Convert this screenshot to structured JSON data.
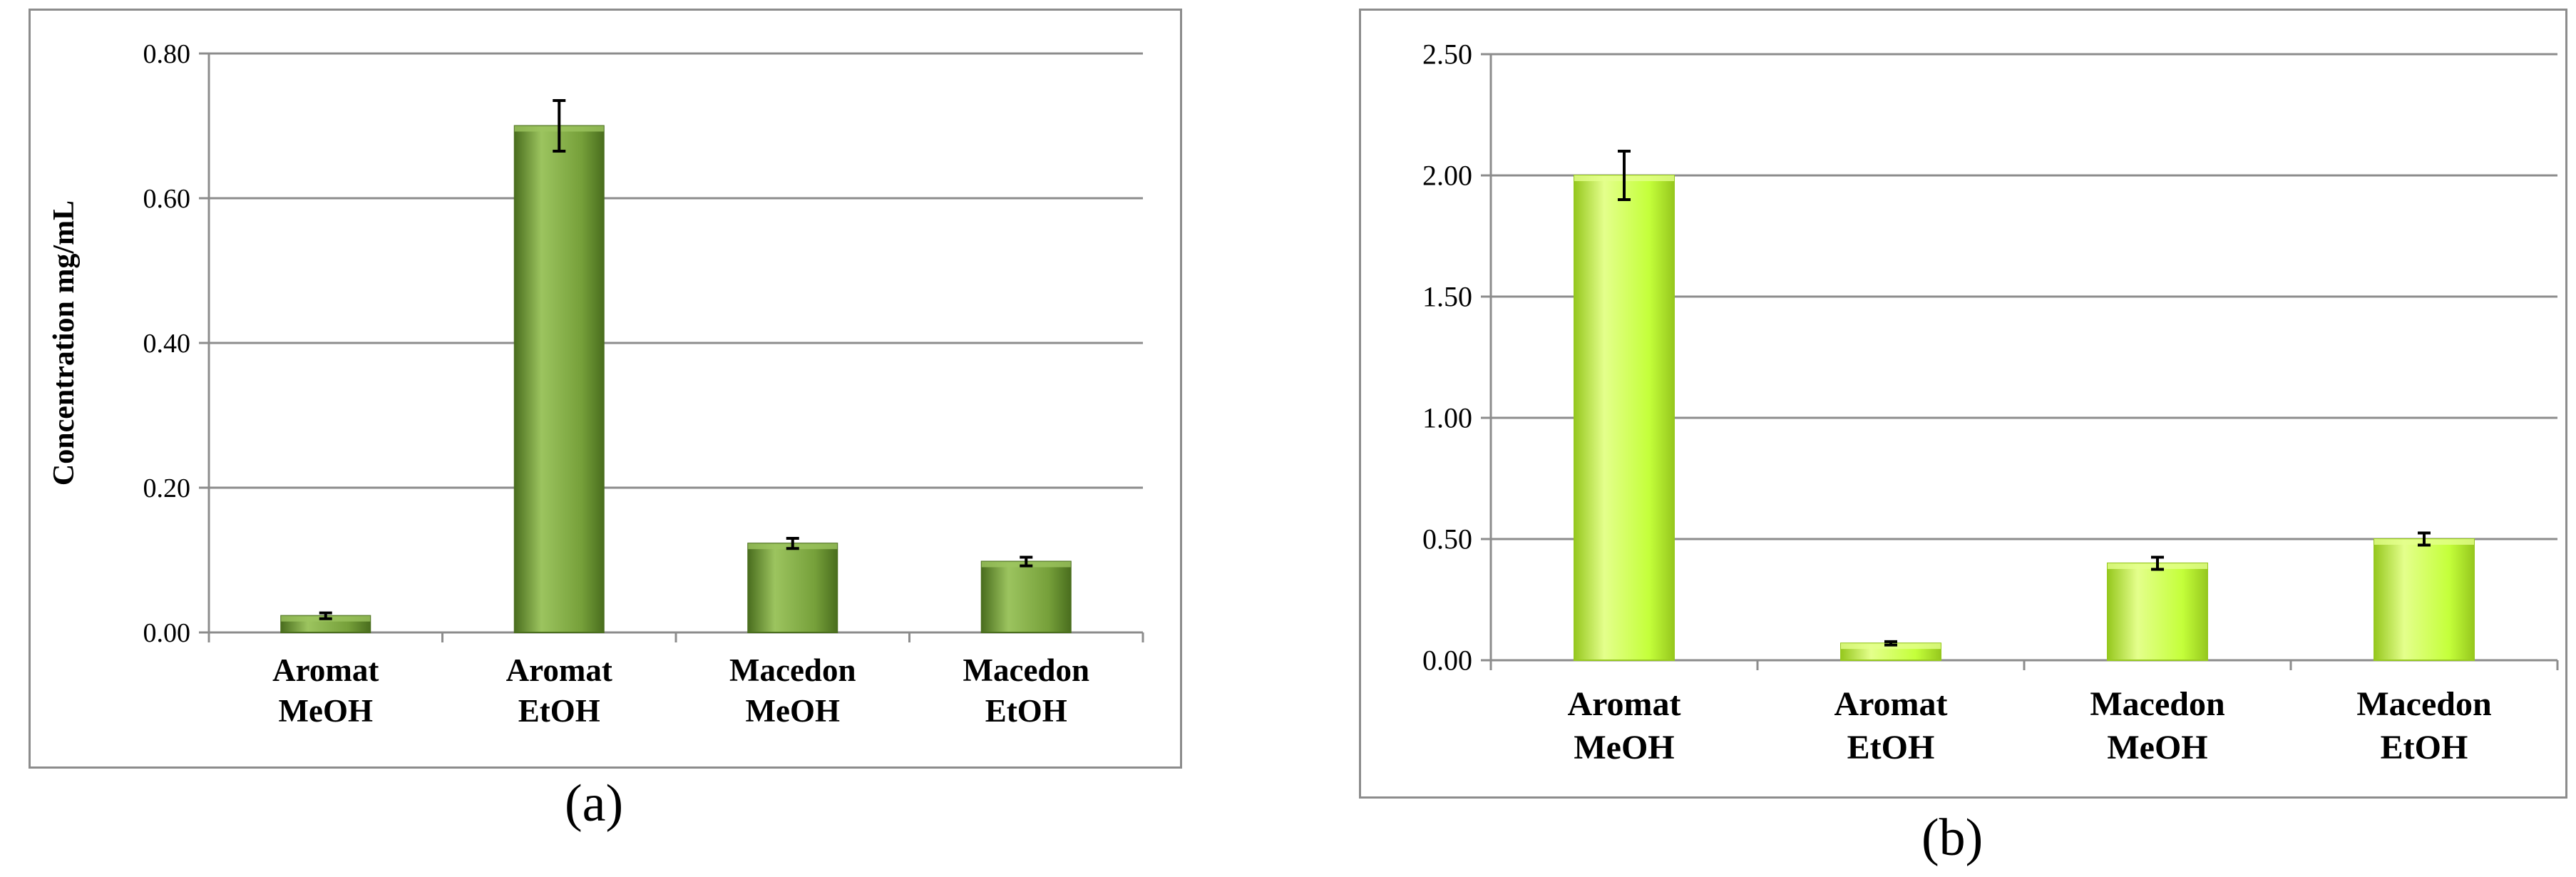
{
  "captions": {
    "a": "(a)",
    "b": "(b)"
  },
  "chart_data": [
    {
      "type": "bar",
      "panel": "a",
      "categories": [
        [
          "Aromat",
          "MeOH"
        ],
        [
          "Aromat",
          "EtOH"
        ],
        [
          "Macedon",
          "MeOH"
        ],
        [
          "Macedon",
          "EtOH"
        ]
      ],
      "values": [
        0.023,
        0.7,
        0.123,
        0.098
      ],
      "errors": [
        0.004,
        0.035,
        0.007,
        0.006
      ],
      "ylabel": "Concentration  mg/mL",
      "xlabel": "",
      "ylim": [
        0,
        0.8
      ],
      "yticks": [
        "0.00",
        "0.20",
        "0.40",
        "0.60",
        "0.80"
      ],
      "grid": true,
      "legend": "none",
      "colors": {
        "bar": "#76a03a",
        "bar_light": "#9cc45f",
        "bar_dark": "#4a6e1e",
        "grid": "#8c8c8c"
      }
    },
    {
      "type": "bar",
      "panel": "b",
      "categories": [
        [
          "Aromat",
          "MeOH"
        ],
        [
          "Aromat",
          "EtOH"
        ],
        [
          "Macedon",
          "MeOH"
        ],
        [
          "Macedon",
          "EtOH"
        ]
      ],
      "values": [
        2.0,
        0.07,
        0.4,
        0.5
      ],
      "errors": [
        0.1,
        0.007,
        0.025,
        0.025
      ],
      "ylabel": "",
      "xlabel": "",
      "ylim": [
        0,
        2.5
      ],
      "yticks": [
        "0.00",
        "0.50",
        "1.00",
        "1.50",
        "2.00",
        "2.50"
      ],
      "grid": true,
      "legend": "none",
      "colors": {
        "bar": "#c4ff3a",
        "bar_light": "#e4ff8c",
        "bar_dark": "#96c81e",
        "grid": "#8c8c8c"
      }
    }
  ]
}
